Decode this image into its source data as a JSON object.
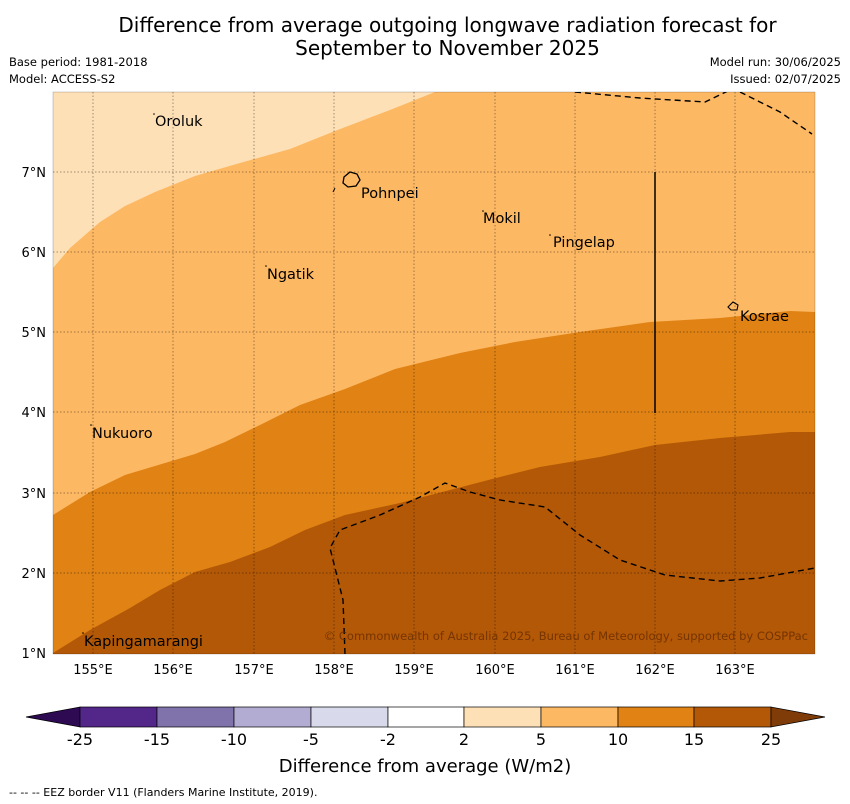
{
  "title_line1": "Difference from average outgoing longwave radiation forecast for",
  "title_line2": "September to November 2025",
  "base_period": "Base period: 1981-2018",
  "model": "Model: ACCESS-S2",
  "model_run": "Model run: 30/06/2025",
  "issued": "Issued: 02/07/2025",
  "copyright": "© Commonwealth of Australia 2025, Bureau of Meteorology, supported by COSPPac",
  "x_ticks": [
    "155°E",
    "156°E",
    "157°E",
    "158°E",
    "159°E",
    "160°E",
    "161°E",
    "162°E",
    "163°E"
  ],
  "y_ticks": [
    "7°N",
    "6°N",
    "5°N",
    "4°N",
    "3°N",
    "2°N",
    "1°N"
  ],
  "places": {
    "oroluk": "Oroluk",
    "pohnpei": "Pohnpei",
    "mokil": "Mokil",
    "pingelap": "Pingelap",
    "ngatik": "Ngatik",
    "kosrae": "Kosrae",
    "nukuoro": "Nukuoro",
    "kapingamarangi": "Kapingamarangi"
  },
  "colorbar": {
    "labels": [
      "-25",
      "-15",
      "-10",
      "-5",
      "-2",
      "2",
      "5",
      "10",
      "15",
      "25"
    ],
    "colors": [
      "#2d0a52",
      "#53268a",
      "#8073ac",
      "#b2abd2",
      "#d8daeb",
      "#ffffff",
      "#fee0b6",
      "#fdb863",
      "#e08214",
      "#b35806",
      "#7f3b08"
    ],
    "title": "Difference from average (W/m2)"
  },
  "map_colors": {
    "band_2_5": "#fee0b6",
    "band_5_10": "#fdb863",
    "band_10_15": "#e08214",
    "band_15_25": "#b35806"
  },
  "legend_note": "-- -- -- EEZ border V11 (Flanders Marine Institute, 2019)."
}
